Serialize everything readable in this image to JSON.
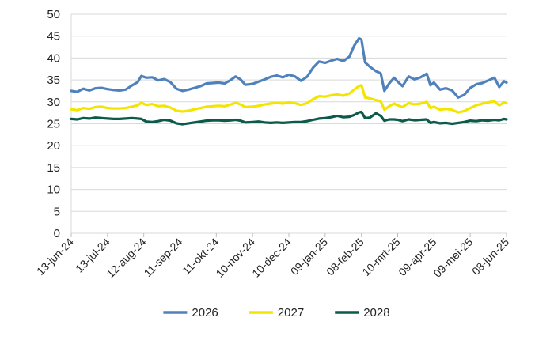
{
  "chart_data": {
    "type": "line",
    "title": "",
    "xlabel": "",
    "ylabel": "",
    "ylim": [
      0,
      50
    ],
    "yticks": [
      0,
      5,
      10,
      15,
      20,
      25,
      30,
      35,
      40,
      45,
      50
    ],
    "grid": "horizontal",
    "legend_position": "bottom",
    "x_tick_labels": [
      "13-jun-24",
      "13-jul-24",
      "12-aug-24",
      "11-sep-24",
      "11-okt-24",
      "10-nov-24",
      "10-dec-24",
      "09-jan-25",
      "08-feb-25",
      "10-mrt-25",
      "09-apr-25",
      "09-mei-25",
      "08-jun-25"
    ],
    "x_dates": [
      "2024-06-13",
      "2024-07-13",
      "2024-08-12",
      "2024-09-11",
      "2024-10-11",
      "2024-11-10",
      "2024-12-10",
      "2025-01-09",
      "2025-02-08",
      "2025-03-10",
      "2025-04-09",
      "2025-05-09",
      "2025-06-08"
    ],
    "series": [
      {
        "name": "2026",
        "color": "#4F81BD",
        "points": [
          [
            "2024-06-13",
            32.5
          ],
          [
            "2024-06-18",
            32.3
          ],
          [
            "2024-06-23",
            33.0
          ],
          [
            "2024-06-28",
            32.6
          ],
          [
            "2024-07-03",
            33.1
          ],
          [
            "2024-07-08",
            33.2
          ],
          [
            "2024-07-13",
            32.9
          ],
          [
            "2024-07-18",
            32.7
          ],
          [
            "2024-07-23",
            32.6
          ],
          [
            "2024-07-28",
            32.8
          ],
          [
            "2024-08-02",
            33.7
          ],
          [
            "2024-08-07",
            34.5
          ],
          [
            "2024-08-10",
            35.9
          ],
          [
            "2024-08-14",
            35.5
          ],
          [
            "2024-08-19",
            35.6
          ],
          [
            "2024-08-24",
            34.9
          ],
          [
            "2024-08-29",
            35.2
          ],
          [
            "2024-09-03",
            34.5
          ],
          [
            "2024-09-08",
            33.0
          ],
          [
            "2024-09-13",
            32.5
          ],
          [
            "2024-09-18",
            32.8
          ],
          [
            "2024-09-23",
            33.2
          ],
          [
            "2024-09-28",
            33.6
          ],
          [
            "2024-10-03",
            34.2
          ],
          [
            "2024-10-08",
            34.3
          ],
          [
            "2024-10-13",
            34.4
          ],
          [
            "2024-10-18",
            34.2
          ],
          [
            "2024-10-23",
            35.0
          ],
          [
            "2024-10-27",
            35.8
          ],
          [
            "2024-10-31",
            35.1
          ],
          [
            "2024-11-04",
            33.9
          ],
          [
            "2024-11-10",
            34.1
          ],
          [
            "2024-11-15",
            34.6
          ],
          [
            "2024-11-20",
            35.1
          ],
          [
            "2024-11-25",
            35.7
          ],
          [
            "2024-11-30",
            36.0
          ],
          [
            "2024-12-05",
            35.6
          ],
          [
            "2024-12-10",
            36.2
          ],
          [
            "2024-12-15",
            35.8
          ],
          [
            "2024-12-20",
            34.8
          ],
          [
            "2024-12-25",
            35.7
          ],
          [
            "2024-12-30",
            37.8
          ],
          [
            "2025-01-04",
            39.2
          ],
          [
            "2025-01-09",
            38.9
          ],
          [
            "2025-01-14",
            39.4
          ],
          [
            "2025-01-19",
            39.8
          ],
          [
            "2025-01-24",
            39.3
          ],
          [
            "2025-01-29",
            40.3
          ],
          [
            "2025-02-02",
            42.8
          ],
          [
            "2025-02-06",
            44.5
          ],
          [
            "2025-02-08",
            44.2
          ],
          [
            "2025-02-11",
            39.0
          ],
          [
            "2025-02-15",
            38.0
          ],
          [
            "2025-02-20",
            37.0
          ],
          [
            "2025-02-24",
            36.5
          ],
          [
            "2025-02-27",
            32.5
          ],
          [
            "2025-03-03",
            34.2
          ],
          [
            "2025-03-07",
            35.5
          ],
          [
            "2025-03-10",
            34.6
          ],
          [
            "2025-03-14",
            33.6
          ],
          [
            "2025-03-19",
            35.8
          ],
          [
            "2025-03-24",
            35.1
          ],
          [
            "2025-03-29",
            35.6
          ],
          [
            "2025-04-03",
            36.4
          ],
          [
            "2025-04-06",
            33.8
          ],
          [
            "2025-04-09",
            34.4
          ],
          [
            "2025-04-14",
            32.8
          ],
          [
            "2025-04-19",
            33.1
          ],
          [
            "2025-04-24",
            32.6
          ],
          [
            "2025-04-29",
            31.0
          ],
          [
            "2025-05-04",
            31.6
          ],
          [
            "2025-05-09",
            33.2
          ],
          [
            "2025-05-14",
            34.0
          ],
          [
            "2025-05-19",
            34.3
          ],
          [
            "2025-05-24",
            34.9
          ],
          [
            "2025-05-29",
            35.5
          ],
          [
            "2025-06-02",
            33.4
          ],
          [
            "2025-06-06",
            34.7
          ],
          [
            "2025-06-08",
            34.4
          ]
        ]
      },
      {
        "name": "2027",
        "color": "#F2E600",
        "points": [
          [
            "2024-06-13",
            28.3
          ],
          [
            "2024-06-18",
            28.1
          ],
          [
            "2024-06-23",
            28.6
          ],
          [
            "2024-06-28",
            28.4
          ],
          [
            "2024-07-03",
            28.8
          ],
          [
            "2024-07-08",
            28.9
          ],
          [
            "2024-07-13",
            28.6
          ],
          [
            "2024-07-18",
            28.5
          ],
          [
            "2024-07-23",
            28.5
          ],
          [
            "2024-07-28",
            28.6
          ],
          [
            "2024-08-02",
            28.9
          ],
          [
            "2024-08-07",
            29.2
          ],
          [
            "2024-08-10",
            29.8
          ],
          [
            "2024-08-14",
            29.3
          ],
          [
            "2024-08-19",
            29.5
          ],
          [
            "2024-08-24",
            29.0
          ],
          [
            "2024-08-29",
            29.1
          ],
          [
            "2024-09-03",
            28.7
          ],
          [
            "2024-09-08",
            28.0
          ],
          [
            "2024-09-13",
            27.8
          ],
          [
            "2024-09-18",
            28.0
          ],
          [
            "2024-09-23",
            28.3
          ],
          [
            "2024-09-28",
            28.6
          ],
          [
            "2024-10-03",
            28.9
          ],
          [
            "2024-10-08",
            29.0
          ],
          [
            "2024-10-13",
            29.1
          ],
          [
            "2024-10-18",
            29.0
          ],
          [
            "2024-10-23",
            29.4
          ],
          [
            "2024-10-27",
            29.8
          ],
          [
            "2024-10-31",
            29.4
          ],
          [
            "2024-11-04",
            28.8
          ],
          [
            "2024-11-10",
            28.9
          ],
          [
            "2024-11-15",
            29.1
          ],
          [
            "2024-11-20",
            29.4
          ],
          [
            "2024-11-25",
            29.6
          ],
          [
            "2024-11-30",
            29.8
          ],
          [
            "2024-12-05",
            29.6
          ],
          [
            "2024-12-10",
            29.9
          ],
          [
            "2024-12-15",
            29.7
          ],
          [
            "2024-12-20",
            29.3
          ],
          [
            "2024-12-25",
            29.7
          ],
          [
            "2024-12-30",
            30.6
          ],
          [
            "2025-01-04",
            31.3
          ],
          [
            "2025-01-09",
            31.2
          ],
          [
            "2025-01-14",
            31.5
          ],
          [
            "2025-01-19",
            31.7
          ],
          [
            "2025-01-24",
            31.4
          ],
          [
            "2025-01-29",
            31.9
          ],
          [
            "2025-02-02",
            32.8
          ],
          [
            "2025-02-06",
            33.6
          ],
          [
            "2025-02-08",
            33.8
          ],
          [
            "2025-02-11",
            31.0
          ],
          [
            "2025-02-15",
            30.8
          ],
          [
            "2025-02-20",
            30.4
          ],
          [
            "2025-02-24",
            30.1
          ],
          [
            "2025-02-27",
            28.2
          ],
          [
            "2025-03-03",
            29.0
          ],
          [
            "2025-03-07",
            29.6
          ],
          [
            "2025-03-10",
            29.2
          ],
          [
            "2025-03-14",
            28.8
          ],
          [
            "2025-03-19",
            29.7
          ],
          [
            "2025-03-24",
            29.4
          ],
          [
            "2025-03-29",
            29.6
          ],
          [
            "2025-04-03",
            30.0
          ],
          [
            "2025-04-06",
            28.6
          ],
          [
            "2025-04-09",
            28.9
          ],
          [
            "2025-04-14",
            28.2
          ],
          [
            "2025-04-19",
            28.4
          ],
          [
            "2025-04-24",
            28.2
          ],
          [
            "2025-04-29",
            27.6
          ],
          [
            "2025-05-04",
            27.9
          ],
          [
            "2025-05-09",
            28.6
          ],
          [
            "2025-05-14",
            29.2
          ],
          [
            "2025-05-19",
            29.6
          ],
          [
            "2025-05-24",
            29.9
          ],
          [
            "2025-05-29",
            30.1
          ],
          [
            "2025-06-02",
            29.2
          ],
          [
            "2025-06-06",
            29.9
          ],
          [
            "2025-06-08",
            29.7
          ]
        ]
      },
      {
        "name": "2028",
        "color": "#0B5A4A",
        "points": [
          [
            "2024-06-13",
            26.1
          ],
          [
            "2024-06-18",
            26.0
          ],
          [
            "2024-06-23",
            26.3
          ],
          [
            "2024-06-28",
            26.2
          ],
          [
            "2024-07-03",
            26.4
          ],
          [
            "2024-07-08",
            26.3
          ],
          [
            "2024-07-13",
            26.2
          ],
          [
            "2024-07-18",
            26.1
          ],
          [
            "2024-07-23",
            26.1
          ],
          [
            "2024-07-28",
            26.2
          ],
          [
            "2024-08-02",
            26.3
          ],
          [
            "2024-08-07",
            26.2
          ],
          [
            "2024-08-10",
            26.1
          ],
          [
            "2024-08-14",
            25.5
          ],
          [
            "2024-08-19",
            25.4
          ],
          [
            "2024-08-24",
            25.6
          ],
          [
            "2024-08-29",
            25.9
          ],
          [
            "2024-09-03",
            25.7
          ],
          [
            "2024-09-08",
            25.1
          ],
          [
            "2024-09-13",
            24.9
          ],
          [
            "2024-09-18",
            25.1
          ],
          [
            "2024-09-23",
            25.3
          ],
          [
            "2024-09-28",
            25.5
          ],
          [
            "2024-10-03",
            25.7
          ],
          [
            "2024-10-08",
            25.8
          ],
          [
            "2024-10-13",
            25.8
          ],
          [
            "2024-10-18",
            25.7
          ],
          [
            "2024-10-23",
            25.8
          ],
          [
            "2024-10-27",
            25.9
          ],
          [
            "2024-10-31",
            25.7
          ],
          [
            "2024-11-04",
            25.3
          ],
          [
            "2024-11-10",
            25.4
          ],
          [
            "2024-11-15",
            25.5
          ],
          [
            "2024-11-20",
            25.3
          ],
          [
            "2024-11-25",
            25.2
          ],
          [
            "2024-11-30",
            25.3
          ],
          [
            "2024-12-05",
            25.2
          ],
          [
            "2024-12-10",
            25.3
          ],
          [
            "2024-12-15",
            25.4
          ],
          [
            "2024-12-20",
            25.4
          ],
          [
            "2024-12-25",
            25.6
          ],
          [
            "2024-12-30",
            25.9
          ],
          [
            "2025-01-04",
            26.2
          ],
          [
            "2025-01-09",
            26.3
          ],
          [
            "2025-01-14",
            26.5
          ],
          [
            "2025-01-19",
            26.8
          ],
          [
            "2025-01-24",
            26.5
          ],
          [
            "2025-01-29",
            26.6
          ],
          [
            "2025-02-02",
            27.0
          ],
          [
            "2025-02-06",
            27.6
          ],
          [
            "2025-02-08",
            27.7
          ],
          [
            "2025-02-11",
            26.3
          ],
          [
            "2025-02-15",
            26.4
          ],
          [
            "2025-02-20",
            27.4
          ],
          [
            "2025-02-24",
            26.8
          ],
          [
            "2025-02-27",
            25.7
          ],
          [
            "2025-03-03",
            26.0
          ],
          [
            "2025-03-07",
            26.0
          ],
          [
            "2025-03-10",
            25.9
          ],
          [
            "2025-03-14",
            25.6
          ],
          [
            "2025-03-19",
            26.0
          ],
          [
            "2025-03-24",
            25.8
          ],
          [
            "2025-03-29",
            25.9
          ],
          [
            "2025-04-03",
            26.0
          ],
          [
            "2025-04-06",
            25.2
          ],
          [
            "2025-04-09",
            25.4
          ],
          [
            "2025-04-14",
            25.1
          ],
          [
            "2025-04-19",
            25.2
          ],
          [
            "2025-04-24",
            25.0
          ],
          [
            "2025-04-29",
            25.2
          ],
          [
            "2025-05-04",
            25.4
          ],
          [
            "2025-05-09",
            25.7
          ],
          [
            "2025-05-14",
            25.6
          ],
          [
            "2025-05-19",
            25.8
          ],
          [
            "2025-05-24",
            25.7
          ],
          [
            "2025-05-29",
            25.9
          ],
          [
            "2025-06-02",
            25.8
          ],
          [
            "2025-06-06",
            26.1
          ],
          [
            "2025-06-08",
            26.0
          ]
        ]
      }
    ]
  }
}
